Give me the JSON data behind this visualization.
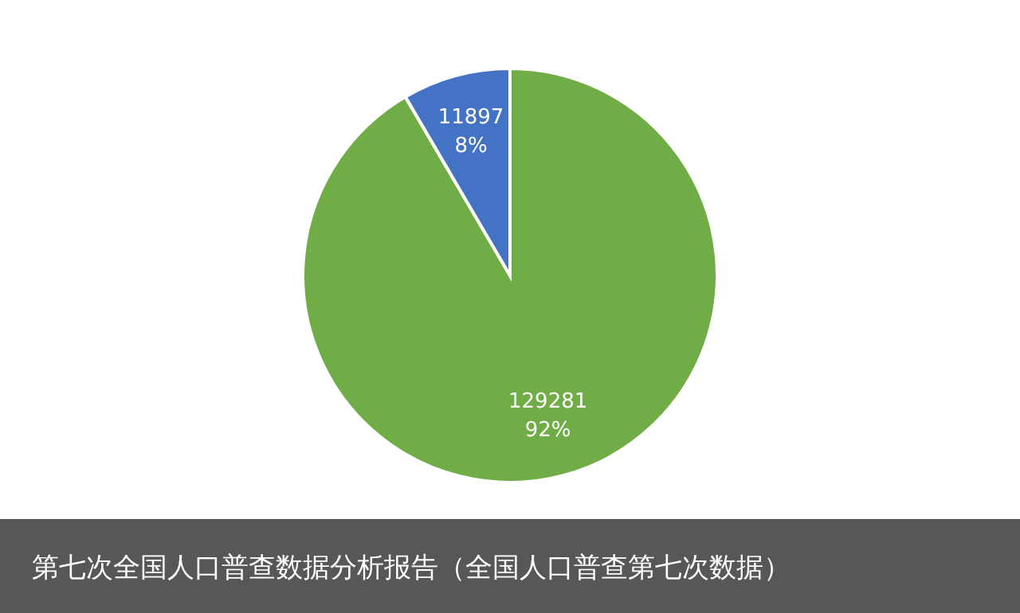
{
  "chart_data": {
    "type": "pie",
    "title": "第七次全国人口普查数据分析报告（全国人口普查第七次数据）",
    "categories": [
      null,
      null
    ],
    "values": [
      129281,
      11897
    ],
    "colors": [
      "#70ad47",
      "#4472c4"
    ],
    "value_labels": [
      "129281\n92%",
      "11897\n8%"
    ]
  }
}
